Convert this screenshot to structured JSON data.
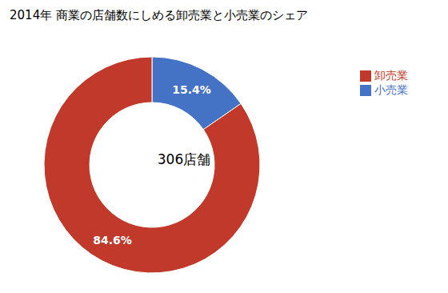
{
  "chart_data": {
    "type": "pie",
    "title": "2014年 商業の店舗数にしめる卸売業と小売業のシェア",
    "categories": [
      "小売業",
      "卸売業"
    ],
    "values": [
      15.4,
      84.6
    ],
    "value_labels": [
      "15.4%",
      "84.6%"
    ],
    "colors": [
      "#4472C4",
      "#C0392B"
    ],
    "annotations": [
      "306店舗"
    ],
    "data_labels": true,
    "legend": "upper right"
  }
}
